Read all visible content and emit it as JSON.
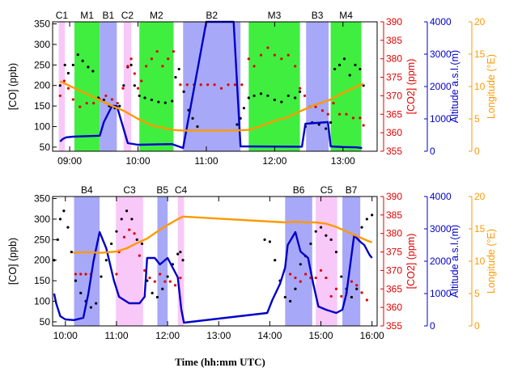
{
  "chart_data": [
    {
      "type": "scatter",
      "x_unit": "hours UTC",
      "xlim": [
        8.75,
        13.5
      ],
      "x_ticks": [
        9,
        10,
        11,
        12,
        13
      ],
      "x_tick_labels": [
        "09:00",
        "10:00",
        "11:00",
        "12:00",
        "13:00"
      ],
      "axes": [
        {
          "label": "[CO] (ppb)",
          "side": "left",
          "range": [
            40,
            355
          ],
          "ticks": [
            50,
            100,
            150,
            200,
            250,
            300,
            350
          ],
          "color": "#000000"
        },
        {
          "label": "[CO2] (ppm)",
          "side": "right",
          "range": [
            355,
            390
          ],
          "ticks": [
            355,
            360,
            365,
            370,
            375,
            380,
            385,
            390
          ],
          "color": "#e00000"
        },
        {
          "label": "Altitude a.s.l.(m)",
          "side": "right",
          "range": [
            0,
            4000
          ],
          "ticks": [
            0,
            1000,
            2000,
            3000,
            4000
          ],
          "color": "#0000c8"
        },
        {
          "label": "Longitude (°E)",
          "side": "right",
          "range": [
            0,
            20
          ],
          "ticks": [
            0,
            5,
            10,
            15,
            20
          ],
          "color": "#ff9900"
        }
      ],
      "segments": [
        {
          "label": "C1",
          "type": "C",
          "start": 8.84,
          "end": 8.93
        },
        {
          "label": "M1",
          "type": "M",
          "start": 9.07,
          "end": 9.44
        },
        {
          "label": "B1",
          "type": "B",
          "start": 9.44,
          "end": 9.69
        },
        {
          "label": "C2",
          "type": "C",
          "start": 9.79,
          "end": 9.9
        },
        {
          "label": "M2",
          "type": "M",
          "start": 10.02,
          "end": 10.52
        },
        {
          "label": "B2",
          "type": "B",
          "start": 10.66,
          "end": 11.5
        },
        {
          "label": "M3",
          "type": "M",
          "start": 11.62,
          "end": 12.37
        },
        {
          "label": "B3",
          "type": "B",
          "start": 12.46,
          "end": 12.79
        },
        {
          "label": "M4",
          "type": "M",
          "start": 12.82,
          "end": 13.27
        }
      ],
      "series": [
        {
          "axis": "[CO] (ppb)",
          "color": "#000000",
          "style": "dots",
          "x": [
            8.86,
            8.93,
            8.98,
            9.05,
            9.12,
            9.19,
            9.27,
            9.34,
            9.42,
            9.5,
            9.58,
            9.66,
            9.73,
            9.79,
            9.85,
            9.9,
            9.95,
            10.02,
            10.1,
            10.2,
            10.3,
            10.4,
            10.5,
            10.55,
            10.6,
            10.67,
            10.74,
            10.8,
            10.87,
            11.45,
            11.5,
            11.55,
            11.62,
            11.7,
            11.8,
            11.9,
            12.0,
            12.1,
            12.2,
            12.3,
            12.37,
            12.45,
            12.55,
            12.65,
            12.75,
            12.82,
            12.88,
            12.95,
            13.02,
            13.1,
            13.18,
            13.25,
            13.3
          ],
          "y": [
            200,
            250,
            230,
            250,
            275,
            260,
            245,
            235,
            170,
            165,
            150,
            145,
            150,
            200,
            245,
            250,
            200,
            175,
            170,
            165,
            160,
            158,
            162,
            220,
            240,
            185,
            140,
            120,
            100,
            105,
            120,
            145,
            170,
            175,
            180,
            175,
            165,
            160,
            175,
            170,
            185,
            100,
            110,
            105,
            95,
            110,
            240,
            250,
            265,
            225,
            250,
            240,
            200
          ]
        },
        {
          "axis": "[CO2] (ppm)",
          "color": "#e00000",
          "style": "dots",
          "x": [
            8.86,
            8.92,
            8.98,
            9.05,
            9.15,
            9.25,
            9.35,
            9.44,
            9.53,
            9.62,
            9.7,
            9.78,
            9.85,
            9.9,
            9.95,
            10.0,
            10.05,
            10.12,
            10.2,
            10.28,
            10.36,
            10.44,
            10.52,
            10.62,
            10.72,
            10.82,
            10.92,
            11.02,
            11.12,
            11.22,
            11.32,
            11.42,
            11.52,
            11.62,
            11.7,
            11.8,
            11.9,
            12.0,
            12.1,
            12.2,
            12.3,
            12.37,
            12.44,
            12.52,
            12.6,
            12.7,
            12.78,
            12.86,
            12.95,
            13.05,
            13.15,
            13.25,
            13.3
          ],
          "y": [
            370,
            374,
            372,
            369,
            367,
            368,
            368,
            369,
            370,
            369,
            368,
            372,
            378,
            380,
            376,
            372,
            374,
            378,
            380,
            382,
            378,
            380,
            382,
            373,
            373,
            373,
            373,
            373,
            373,
            372,
            373,
            373,
            373,
            380,
            378,
            381,
            383,
            381,
            380,
            381,
            378,
            372,
            370,
            367,
            367,
            366,
            365,
            368,
            365,
            365,
            364,
            364,
            362
          ]
        },
        {
          "axis": "Altitude a.s.l.(m)",
          "color": "#0000c8",
          "style": "line",
          "x": [
            8.86,
            8.9,
            8.95,
            9.05,
            9.44,
            9.5,
            9.62,
            9.69,
            9.85,
            10.0,
            10.5,
            10.66,
            11.0,
            11.05,
            11.4,
            11.5,
            12.4,
            12.45,
            12.78,
            12.82,
            13.0,
            13.2,
            13.28
          ],
          "y": [
            300,
            380,
            430,
            450,
            480,
            900,
            1400,
            1400,
            250,
            200,
            220,
            100,
            4000,
            4000,
            4000,
            150,
            140,
            850,
            900,
            150,
            130,
            120,
            100
          ]
        },
        {
          "axis": "Longitude (°E)",
          "color": "#ff9900",
          "style": "line",
          "x": [
            8.86,
            9.0,
            9.2,
            9.4,
            9.6,
            9.8,
            10.0,
            10.2,
            10.5,
            10.66,
            11.4,
            11.62,
            11.8,
            12.0,
            12.2,
            12.4,
            12.6,
            12.8,
            13.0,
            13.2,
            13.3
          ],
          "y": [
            10.8,
            10.1,
            9.1,
            8.1,
            7.1,
            6.2,
            5.0,
            4.0,
            3.3,
            3.2,
            3.2,
            3.3,
            3.9,
            4.7,
            5.3,
            6.3,
            7.2,
            7.9,
            9.0,
            10.0,
            10.4
          ]
        }
      ]
    },
    {
      "type": "scatter",
      "x_unit": "hours UTC",
      "xlim": [
        9.75,
        16.1
      ],
      "x_ticks": [
        10,
        11,
        12,
        13,
        14,
        15,
        16
      ],
      "x_tick_labels": [
        "10:00",
        "11:00",
        "12:00",
        "13:00",
        "14:00",
        "15:00",
        "16:00"
      ],
      "axes": [
        {
          "label": "[CO] (ppb)",
          "side": "left",
          "range": [
            40,
            355
          ],
          "ticks": [
            50,
            100,
            150,
            200,
            250,
            300,
            350
          ],
          "color": "#000000"
        },
        {
          "label": "[CO2] (ppm)",
          "side": "right",
          "range": [
            355,
            390
          ],
          "ticks": [
            355,
            360,
            365,
            370,
            375,
            380,
            385,
            390
          ],
          "color": "#e00000"
        },
        {
          "label": "Altitude a.s.l.(m)",
          "side": "right",
          "range": [
            0,
            4000
          ],
          "ticks": [
            0,
            1000,
            2000,
            3000,
            4000
          ],
          "color": "#0000c8"
        },
        {
          "label": "Longitude (°E)",
          "side": "right",
          "range": [
            0,
            20
          ],
          "ticks": [
            0,
            5,
            10,
            15,
            20
          ],
          "color": "#ff9900"
        }
      ],
      "segments": [
        {
          "label": "B4",
          "type": "B",
          "start": 10.17,
          "end": 10.67
        },
        {
          "label": "C3",
          "type": "C",
          "start": 10.99,
          "end": 11.52
        },
        {
          "label": "B5",
          "type": "B",
          "start": 11.8,
          "end": 12.0
        },
        {
          "label": "C4",
          "type": "C",
          "start": 12.2,
          "end": 12.32
        },
        {
          "label": "B6",
          "type": "B",
          "start": 14.3,
          "end": 14.83
        },
        {
          "label": "C5",
          "type": "C",
          "start": 14.9,
          "end": 15.32
        },
        {
          "label": "B7",
          "type": "B",
          "start": 15.42,
          "end": 15.77
        }
      ],
      "series": [
        {
          "axis": "[CO] (ppb)",
          "color": "#000000",
          "style": "dots",
          "x": [
            9.78,
            9.85,
            9.9,
            9.97,
            10.05,
            10.12,
            10.2,
            10.3,
            10.4,
            10.5,
            10.6,
            10.7,
            10.8,
            10.9,
            11.0,
            11.1,
            11.2,
            11.3,
            11.4,
            11.5,
            11.6,
            11.7,
            11.8,
            11.9,
            12.0,
            12.1,
            12.2,
            12.25,
            12.3,
            13.9,
            14.0,
            14.1,
            14.2,
            14.3,
            14.4,
            14.5,
            14.6,
            14.7,
            14.8,
            14.9,
            15.0,
            15.1,
            15.2,
            15.3,
            15.4,
            15.5,
            15.6,
            15.7,
            15.8,
            15.9,
            16.0
          ],
          "y": [
            200,
            250,
            300,
            320,
            280,
            220,
            150,
            120,
            100,
            85,
            95,
            160,
            200,
            240,
            270,
            300,
            320,
            300,
            250,
            240,
            150,
            120,
            110,
            130,
            160,
            190,
            215,
            220,
            200,
            250,
            245,
            200,
            150,
            110,
            100,
            130,
            190,
            210,
            240,
            270,
            280,
            260,
            250,
            220,
            160,
            130,
            110,
            130,
            280,
            300,
            310
          ]
        },
        {
          "axis": "[CO2] (ppm)",
          "color": "#e00000",
          "style": "dots",
          "x": [
            10.2,
            10.3,
            10.4,
            10.5,
            11.0,
            11.05,
            11.15,
            11.25,
            11.35,
            11.45,
            11.55,
            11.65,
            11.75,
            11.85,
            11.95,
            12.05,
            12.15,
            12.25,
            14.4,
            14.5,
            14.6,
            14.7,
            14.8,
            14.9,
            15.0,
            15.1,
            15.2,
            15.3,
            15.4,
            15.5,
            15.6,
            15.7,
            15.8,
            15.9
          ],
          "y": [
            369,
            369,
            369,
            369,
            369,
            375,
            379,
            381,
            380,
            374,
            370,
            368,
            367,
            369,
            367,
            367,
            366,
            368,
            369,
            368,
            367,
            369,
            368,
            368,
            370,
            368,
            363,
            365,
            363,
            364,
            367,
            366,
            364,
            362
          ]
        },
        {
          "axis": "Altitude a.s.l.(m)",
          "color": "#0000c8",
          "style": "line",
          "x": [
            9.78,
            9.82,
            9.9,
            10.0,
            10.17,
            10.35,
            10.45,
            10.55,
            10.67,
            10.8,
            10.95,
            11.05,
            11.25,
            11.45,
            11.55,
            11.6,
            11.75,
            11.85,
            12.0,
            12.1,
            12.2,
            12.27,
            12.32,
            13.95,
            14.05,
            14.2,
            14.3,
            14.35,
            14.5,
            14.6,
            14.75,
            14.85,
            14.95,
            15.1,
            15.3,
            15.42,
            15.5,
            15.6,
            15.65,
            15.77,
            15.85,
            15.95,
            16.0
          ],
          "y": [
            1000,
            700,
            300,
            200,
            180,
            250,
            1000,
            2000,
            2900,
            2400,
            1400,
            900,
            700,
            700,
            900,
            2100,
            2100,
            1900,
            2100,
            1800,
            1500,
            500,
            100,
            400,
            800,
            1300,
            1800,
            2500,
            2900,
            2300,
            2100,
            1300,
            600,
            500,
            400,
            500,
            1000,
            2200,
            2800,
            2600,
            2500,
            2200,
            2100
          ]
        },
        {
          "axis": "Longitude (°E)",
          "color": "#ff9900",
          "style": "line",
          "x": [
            10.15,
            10.4,
            10.7,
            11.0,
            11.2,
            11.4,
            11.6,
            11.8,
            12.0,
            12.2,
            12.3,
            14.3,
            14.5,
            14.7,
            14.9,
            15.1,
            15.3,
            15.5,
            15.7,
            15.9,
            16.0
          ],
          "y": [
            11.3,
            11.4,
            11.3,
            11.5,
            12.0,
            12.8,
            13.5,
            14.6,
            15.6,
            16.5,
            16.9,
            16.0,
            16.1,
            16.0,
            16.0,
            15.8,
            15.3,
            14.6,
            13.9,
            13.2,
            12.9
          ]
        }
      ]
    }
  ],
  "xlabel": "Time (hh:mm UTC)",
  "colors": {
    "C": "#f8c8f8",
    "M": "#40ee40",
    "B": "#a8a8f8"
  }
}
